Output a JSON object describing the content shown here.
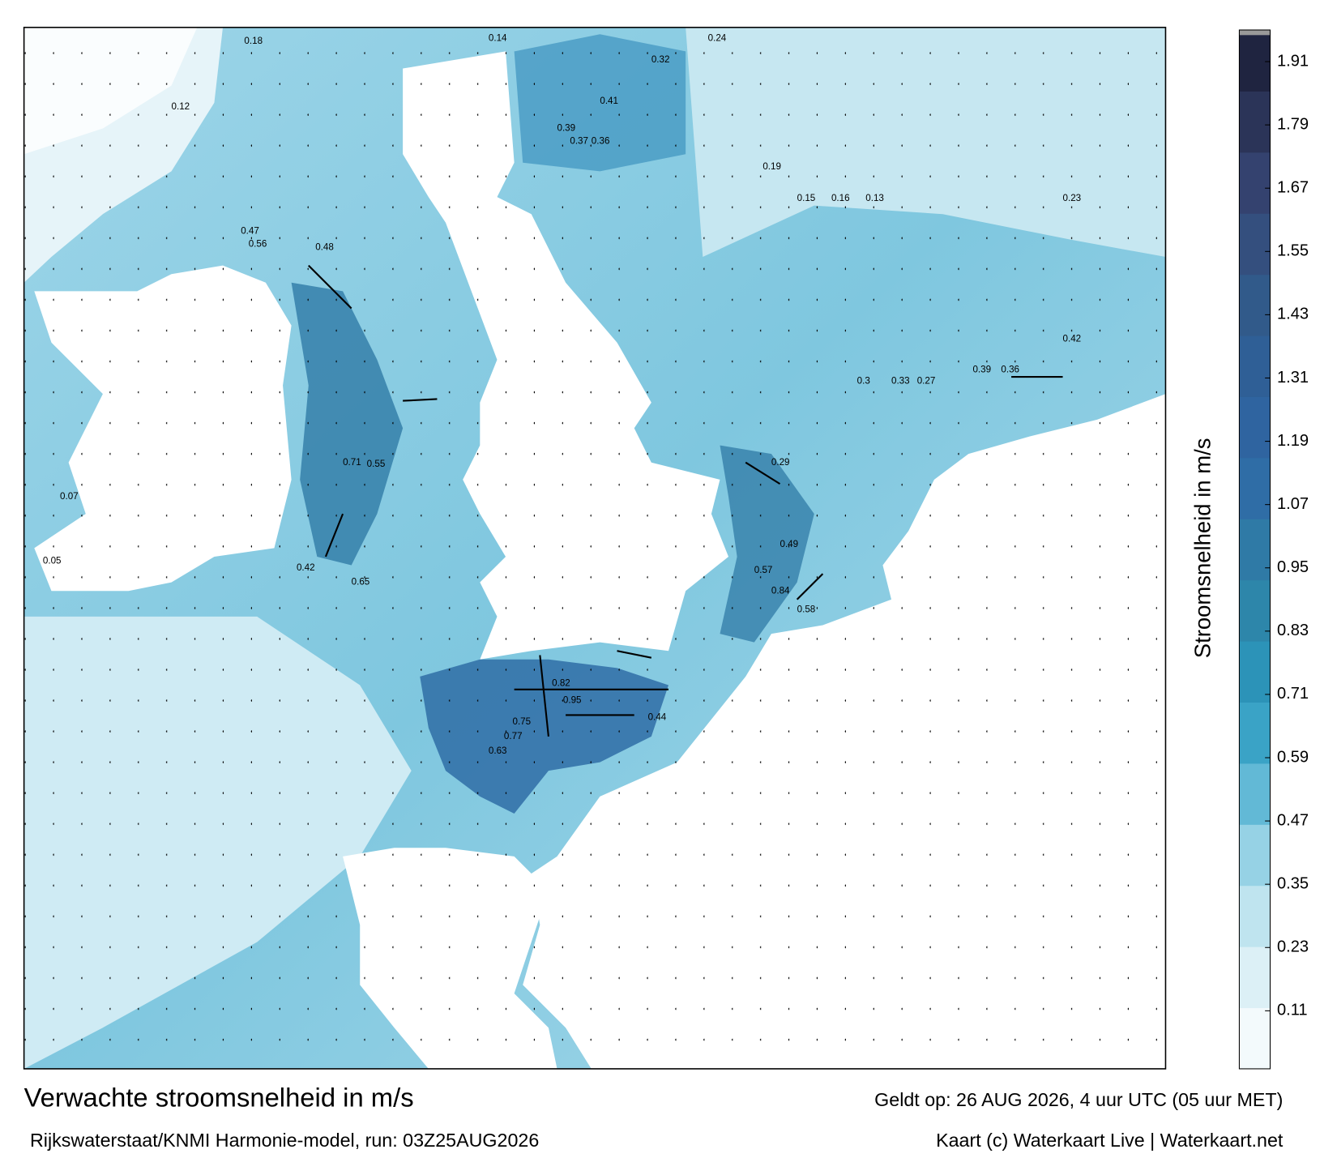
{
  "chart_data": {
    "type": "map",
    "title": "Verwachte stroomsnelheid in m/s",
    "subtitle": "Rijkswaterstaat/KNMI Harmonie-model, run: 03Z25AUG2026",
    "valid_time": "Geldt op: 26 AUG 2026, 4 uur UTC (05 uur MET)",
    "credit": "Kaart (c) Waterkaart Live | Waterkaart.net",
    "colorbar_label": "Stroomsnelheid in m/s",
    "clim": [
      0,
      1.97
    ],
    "cticks": [
      0.11,
      0.23,
      0.35,
      0.47,
      0.59,
      0.71,
      0.83,
      0.95,
      1.07,
      1.19,
      1.31,
      1.43,
      1.55,
      1.67,
      1.79,
      1.91
    ],
    "colors": [
      "#f3fafc",
      "#dcf0f6",
      "#bfe4ef",
      "#96d2e5",
      "#62b9d6",
      "#3aa3c6",
      "#2c93b8",
      "#2d86aa",
      "#2f7aa6",
      "#2f6da6",
      "#2f64a0",
      "#2f5f96",
      "#315a8a",
      "#344f7e",
      "#34426f",
      "#2b3458",
      "#1f2440"
    ],
    "labels": [
      "0.18",
      "0.14",
      "0.24",
      "0.32",
      "0.41",
      "0.39",
      "0.37",
      "0.36",
      "0.19",
      "0.15",
      "0.16",
      "0.13",
      "0.47",
      "0.56",
      "0.48",
      "0.71",
      "0.55",
      "0.65",
      "0.42",
      "0.75",
      "0.95",
      "0.82",
      "0.77",
      "0.44",
      "0.63",
      "0.84",
      "0.58",
      "0.57",
      "0.49",
      "0.29",
      "0.39",
      "0.36",
      "0.42",
      "0.3",
      "0.33",
      "0.27",
      "0.23",
      "0.05",
      "0.07",
      "0.12"
    ]
  }
}
